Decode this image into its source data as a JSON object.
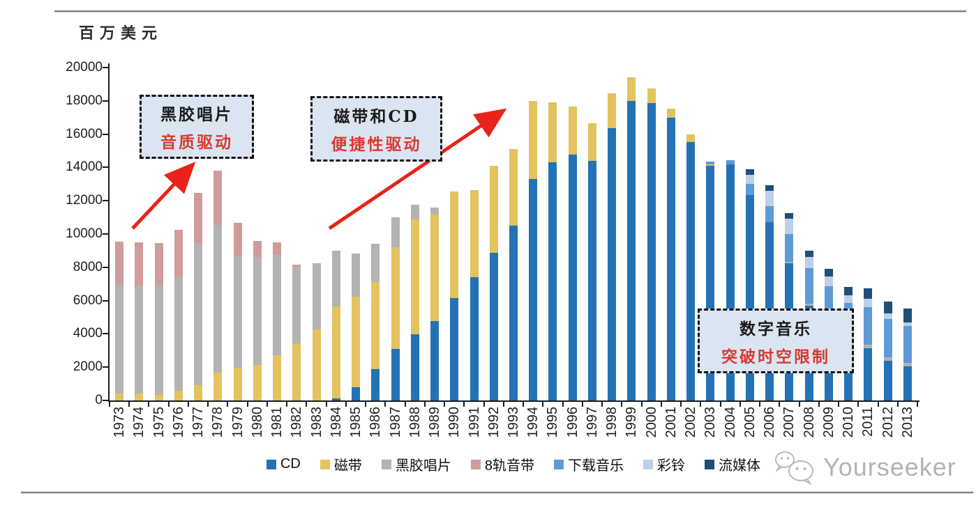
{
  "header": {
    "unit_label": "百万美元"
  },
  "annotations": [
    {
      "id": "vinyl-era",
      "line1": "黑胶唱片",
      "line2": "音质驱动"
    },
    {
      "id": "tape-cd-era",
      "line1": "磁带和CD",
      "line2": "便捷性驱动"
    },
    {
      "id": "digital-era",
      "line1": "数字音乐",
      "line2": "突破时空限制"
    }
  ],
  "watermark": {
    "text": "Yourseeker",
    "icon": "wechat-icon"
  },
  "colors": {
    "arrow_red": "#e8231b",
    "annotation_red": "#d93a30",
    "annotation_bg": "#dbe5f1",
    "axis": "#1a1a1a",
    "divider_gray": "#7f7f7f",
    "watermark_gray": "#b3b3b3"
  },
  "chart_data": {
    "type": "bar",
    "stacked": true,
    "unit": "百万美元",
    "grid": false,
    "legend_position": "bottom",
    "ylim": [
      0,
      20000
    ],
    "ytick_step": 2000,
    "categories": [
      1973,
      1974,
      1975,
      1976,
      1977,
      1978,
      1979,
      1980,
      1981,
      1982,
      1983,
      1984,
      1985,
      1986,
      1987,
      1988,
      1989,
      1990,
      1991,
      1992,
      1993,
      1994,
      1995,
      1996,
      1997,
      1998,
      1999,
      2000,
      2001,
      2002,
      2003,
      2004,
      2005,
      2006,
      2007,
      2008,
      2009,
      2010,
      2011,
      2012,
      2013
    ],
    "series": [
      {
        "name": "CD",
        "color": "#2372b5",
        "values": [
          0,
          0,
          0,
          0,
          0,
          0,
          0,
          0,
          0,
          0,
          0,
          130,
          800,
          1890,
          3110,
          3990,
          4790,
          6150,
          7400,
          8870,
          10500,
          13300,
          14330,
          14750,
          14400,
          16380,
          17980,
          17850,
          17000,
          15540,
          14100,
          14200,
          12350,
          10700,
          8250,
          5700,
          4300,
          3300,
          3150,
          2400,
          2050
        ]
      },
      {
        "name": "磁带",
        "color": "#e2c35e",
        "values": [
          400,
          400,
          350,
          590,
          920,
          1670,
          1970,
          2150,
          2700,
          3430,
          4280,
          5500,
          5420,
          5210,
          6090,
          6890,
          6380,
          6400,
          5240,
          5230,
          4600,
          4700,
          3570,
          2900,
          2240,
          2060,
          1420,
          880,
          550,
          440,
          100,
          0,
          0,
          0,
          0,
          0,
          0,
          0,
          0,
          0,
          0
        ]
      },
      {
        "name": "黑胶唱片",
        "color": "#b3b3b3",
        "values": [
          6590,
          6500,
          6600,
          6860,
          8540,
          8870,
          6730,
          6450,
          6100,
          4600,
          3950,
          3360,
          2600,
          2310,
          1800,
          880,
          420,
          0,
          0,
          0,
          0,
          0,
          0,
          0,
          0,
          0,
          0,
          0,
          0,
          0,
          0,
          0,
          0,
          0,
          80,
          100,
          80,
          90,
          180,
          190,
          200
        ]
      },
      {
        "name": "8轨音带",
        "color": "#d09b9b",
        "values": [
          2550,
          2600,
          2510,
          2800,
          2990,
          3260,
          1970,
          1000,
          700,
          130,
          0,
          0,
          0,
          0,
          0,
          0,
          0,
          0,
          0,
          0,
          0,
          0,
          0,
          0,
          0,
          0,
          0,
          0,
          0,
          0,
          0,
          0,
          0,
          0,
          0,
          0,
          0,
          0,
          0,
          0,
          0
        ]
      },
      {
        "name": "下载音乐",
        "color": "#5e9ad6",
        "values": [
          0,
          0,
          0,
          0,
          0,
          0,
          0,
          0,
          0,
          0,
          0,
          0,
          0,
          0,
          0,
          0,
          0,
          0,
          0,
          0,
          0,
          0,
          0,
          0,
          0,
          0,
          0,
          0,
          0,
          0,
          150,
          250,
          650,
          980,
          1680,
          2140,
          2500,
          2470,
          2260,
          2310,
          2230
        ]
      },
      {
        "name": "彩铃",
        "color": "#bdd0e9",
        "values": [
          0,
          0,
          0,
          0,
          0,
          0,
          0,
          0,
          0,
          0,
          0,
          0,
          0,
          0,
          0,
          0,
          0,
          0,
          0,
          0,
          0,
          0,
          0,
          0,
          0,
          0,
          0,
          0,
          0,
          0,
          0,
          0,
          550,
          900,
          890,
          670,
          550,
          470,
          500,
          330,
          210
        ]
      },
      {
        "name": "流媒体",
        "color": "#1f4e79",
        "values": [
          0,
          0,
          0,
          0,
          0,
          0,
          0,
          0,
          0,
          0,
          0,
          0,
          0,
          0,
          0,
          0,
          0,
          0,
          0,
          0,
          0,
          0,
          0,
          0,
          0,
          0,
          0,
          0,
          0,
          0,
          0,
          0,
          350,
          330,
          370,
          380,
          480,
          500,
          630,
          720,
          850
        ]
      }
    ]
  }
}
